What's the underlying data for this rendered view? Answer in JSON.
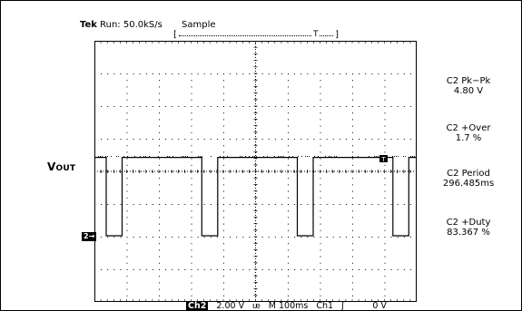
{
  "status": {
    "brand": "Tek",
    "run": "Run: 50.0kS/s",
    "mode": "Sample"
  },
  "trigger": {
    "marker": "T"
  },
  "label": {
    "main": "V",
    "sub": "OUT"
  },
  "channel_marker": "2→",
  "measurements": [
    {
      "name": "C2 Pk−Pk",
      "value": "4.80 V"
    },
    {
      "name": "C2 +Over",
      "value": "1.7 %"
    },
    {
      "name": "C2 Period",
      "value": "296.485ms"
    },
    {
      "name": "C2 +Duty",
      "value": "83.367 %"
    }
  ],
  "bottom": {
    "channel": "Ch2",
    "volts": "2.00 V",
    "bw": "ᵫ",
    "timebase": "M 100ms",
    "trig_source": "Ch1",
    "trig_slope": "ʃ",
    "trig_level": "0 V"
  },
  "waveform": {
    "high_level": 4.8,
    "low_level": 0.0,
    "period_ms": 296.485,
    "duty_percent": 83.367
  }
}
